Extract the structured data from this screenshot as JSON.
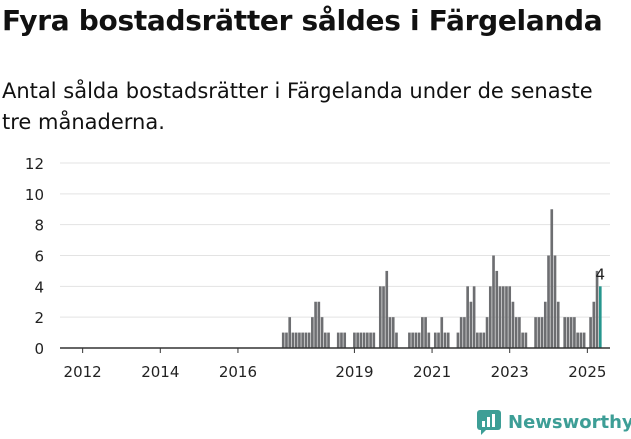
{
  "title": "Fyra bostadsrätter såldes i Färgelanda",
  "subtitle": "Antal sålda bostadsrätter i Färgelanda under de senaste tre månaderna.",
  "logo_text": "Newsworthy",
  "colors": {
    "bar": "#6d6e71",
    "highlight": "#26968e",
    "grid": "#e3e3e3",
    "axis": "#333333",
    "logo": "#3d9e96"
  },
  "chart_data": {
    "type": "bar",
    "title": "",
    "xlabel": "",
    "ylabel": "",
    "ylim": [
      0,
      12
    ],
    "yticks": [
      0,
      2,
      4,
      6,
      8,
      10,
      12
    ],
    "xticks": [
      "2012",
      "2014",
      "2016",
      "2019",
      "2021",
      "2023",
      "2025"
    ],
    "grid": true,
    "x_start": "2011-06",
    "x_end": "2025-08",
    "values": [
      {
        "x": "2017-03",
        "y": 1
      },
      {
        "x": "2017-04",
        "y": 1
      },
      {
        "x": "2017-05",
        "y": 2
      },
      {
        "x": "2017-06",
        "y": 1
      },
      {
        "x": "2017-07",
        "y": 1
      },
      {
        "x": "2017-08",
        "y": 1
      },
      {
        "x": "2017-09",
        "y": 1
      },
      {
        "x": "2017-10",
        "y": 1
      },
      {
        "x": "2017-11",
        "y": 1
      },
      {
        "x": "2017-12",
        "y": 2
      },
      {
        "x": "2018-01",
        "y": 3
      },
      {
        "x": "2018-02",
        "y": 3
      },
      {
        "x": "2018-03",
        "y": 2
      },
      {
        "x": "2018-04",
        "y": 1
      },
      {
        "x": "2018-05",
        "y": 1
      },
      {
        "x": "2018-08",
        "y": 1
      },
      {
        "x": "2018-09",
        "y": 1
      },
      {
        "x": "2018-10",
        "y": 1
      },
      {
        "x": "2019-01",
        "y": 1
      },
      {
        "x": "2019-02",
        "y": 1
      },
      {
        "x": "2019-03",
        "y": 1
      },
      {
        "x": "2019-04",
        "y": 1
      },
      {
        "x": "2019-05",
        "y": 1
      },
      {
        "x": "2019-06",
        "y": 1
      },
      {
        "x": "2019-07",
        "y": 1
      },
      {
        "x": "2019-09",
        "y": 4
      },
      {
        "x": "2019-10",
        "y": 4
      },
      {
        "x": "2019-11",
        "y": 5
      },
      {
        "x": "2019-12",
        "y": 2
      },
      {
        "x": "2020-01",
        "y": 2
      },
      {
        "x": "2020-02",
        "y": 1
      },
      {
        "x": "2020-06",
        "y": 1
      },
      {
        "x": "2020-07",
        "y": 1
      },
      {
        "x": "2020-08",
        "y": 1
      },
      {
        "x": "2020-09",
        "y": 1
      },
      {
        "x": "2020-10",
        "y": 2
      },
      {
        "x": "2020-11",
        "y": 2
      },
      {
        "x": "2020-12",
        "y": 1
      },
      {
        "x": "2021-02",
        "y": 1
      },
      {
        "x": "2021-03",
        "y": 1
      },
      {
        "x": "2021-04",
        "y": 2
      },
      {
        "x": "2021-05",
        "y": 1
      },
      {
        "x": "2021-06",
        "y": 1
      },
      {
        "x": "2021-09",
        "y": 1
      },
      {
        "x": "2021-10",
        "y": 2
      },
      {
        "x": "2021-11",
        "y": 2
      },
      {
        "x": "2021-12",
        "y": 4
      },
      {
        "x": "2022-01",
        "y": 3
      },
      {
        "x": "2022-02",
        "y": 4
      },
      {
        "x": "2022-03",
        "y": 1
      },
      {
        "x": "2022-04",
        "y": 1
      },
      {
        "x": "2022-05",
        "y": 1
      },
      {
        "x": "2022-06",
        "y": 2
      },
      {
        "x": "2022-07",
        "y": 4
      },
      {
        "x": "2022-08",
        "y": 6
      },
      {
        "x": "2022-09",
        "y": 5
      },
      {
        "x": "2022-10",
        "y": 4
      },
      {
        "x": "2022-11",
        "y": 4
      },
      {
        "x": "2022-12",
        "y": 4
      },
      {
        "x": "2023-01",
        "y": 4
      },
      {
        "x": "2023-02",
        "y": 3
      },
      {
        "x": "2023-03",
        "y": 2
      },
      {
        "x": "2023-04",
        "y": 2
      },
      {
        "x": "2023-05",
        "y": 1
      },
      {
        "x": "2023-06",
        "y": 1
      },
      {
        "x": "2023-09",
        "y": 2
      },
      {
        "x": "2023-10",
        "y": 2
      },
      {
        "x": "2023-11",
        "y": 2
      },
      {
        "x": "2023-12",
        "y": 3
      },
      {
        "x": "2024-01",
        "y": 6
      },
      {
        "x": "2024-02",
        "y": 9
      },
      {
        "x": "2024-03",
        "y": 6
      },
      {
        "x": "2024-04",
        "y": 3
      },
      {
        "x": "2024-06",
        "y": 2
      },
      {
        "x": "2024-07",
        "y": 2
      },
      {
        "x": "2024-08",
        "y": 2
      },
      {
        "x": "2024-09",
        "y": 2
      },
      {
        "x": "2024-10",
        "y": 1
      },
      {
        "x": "2024-11",
        "y": 1
      },
      {
        "x": "2024-12",
        "y": 1
      },
      {
        "x": "2025-02",
        "y": 2
      },
      {
        "x": "2025-03",
        "y": 3
      },
      {
        "x": "2025-04",
        "y": 5
      },
      {
        "x": "2025-05",
        "y": 4
      }
    ],
    "highlight": {
      "x": "2025-05",
      "y": 4,
      "label": "4"
    }
  }
}
